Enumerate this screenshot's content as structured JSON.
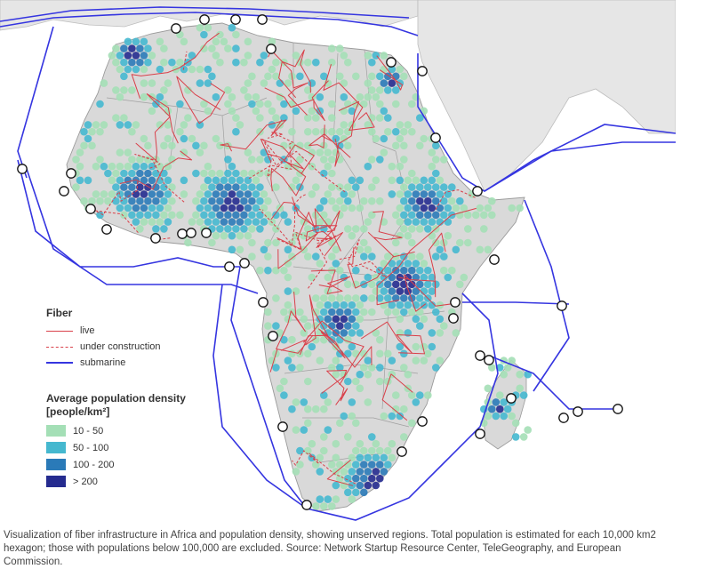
{
  "legend": {
    "fiber_title": "Fiber",
    "live_label": "live",
    "under_construction_label": "under construction",
    "submarine_label": "submarine",
    "density_title_line1": "Average population density",
    "density_title_line2": "[people/km²]",
    "density_classes": [
      {
        "label": "10 - 50",
        "color": "#a4dfb6"
      },
      {
        "label": "50 - 100",
        "color": "#45b8cf"
      },
      {
        "label": "100 - 200",
        "color": "#2a7ab8"
      },
      {
        "label": "> 200",
        "color": "#252b8f"
      }
    ]
  },
  "colors": {
    "land_africa": "#d9d9d9",
    "land_other": "#e6e6e6",
    "sea": "#ffffff",
    "fiber_live": "#d9404a",
    "submarine": "#3535e0",
    "border": "#9a9a9a"
  },
  "caption": "Visualization of fiber infrastructure in Africa and population density, showing unserved regions. Total population is estimated for each 10,000 km2 hexagon; those with populations below 100,000 are excluded. Source: Network Startup Resource Center, TeleGeography, and European Commission."
}
